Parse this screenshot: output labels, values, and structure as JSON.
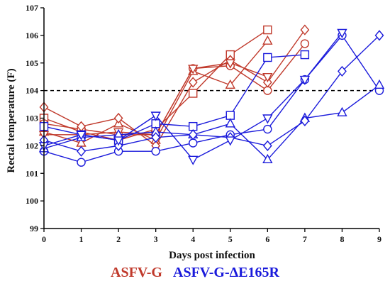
{
  "chart_data": {
    "type": "line",
    "xlabel": "Days post infection",
    "ylabel": "Rectal temperature (F)",
    "x_ticks": [
      0,
      1,
      2,
      3,
      4,
      5,
      6,
      7,
      8,
      9
    ],
    "y_ticks": [
      99,
      100,
      101,
      102,
      103,
      104,
      105,
      106,
      107
    ],
    "xlim": [
      0,
      9
    ],
    "ylim": [
      99,
      107
    ],
    "grid": false,
    "threshold": {
      "y": 104,
      "style": "dashed",
      "color": "#000000"
    },
    "legend": [
      {
        "name": "ASFV-G",
        "color": "#c0392b"
      },
      {
        "name": "ASFV-G-ΔE165R",
        "color": "#1a1adb"
      }
    ],
    "groups": [
      {
        "name": "ASFV-G",
        "color": "#c0392b",
        "series": [
          {
            "marker": "square",
            "x": [
              0,
              1,
              2,
              3,
              4,
              5,
              6
            ],
            "y": [
              103.0,
              102.5,
              102.2,
              102.6,
              103.9,
              105.3,
              106.2
            ]
          },
          {
            "marker": "circle",
            "x": [
              0,
              1,
              2,
              3,
              4,
              5,
              6,
              7
            ],
            "y": [
              102.8,
              102.6,
              102.4,
              102.4,
              104.8,
              104.9,
              104.0,
              105.7
            ]
          },
          {
            "marker": "triangle",
            "x": [
              0,
              1,
              2,
              3,
              4,
              5,
              6
            ],
            "y": [
              102.5,
              102.1,
              102.8,
              102.2,
              104.7,
              104.2,
              105.8
            ]
          },
          {
            "marker": "diamond",
            "x": [
              0,
              1,
              2,
              3,
              4,
              5,
              6,
              7
            ],
            "y": [
              103.4,
              102.7,
              103.0,
              102.0,
              104.3,
              105.1,
              104.3,
              106.2
            ]
          },
          {
            "marker": "invtriangle",
            "x": [
              0,
              1,
              2,
              3,
              4,
              5,
              6
            ],
            "y": [
              102.4,
              102.4,
              102.5,
              102.4,
              104.8,
              105.0,
              104.5
            ]
          }
        ]
      },
      {
        "name": "ASFV-G-ΔE165R",
        "color": "#1a1adb",
        "series": [
          {
            "marker": "square",
            "x": [
              0,
              1,
              2,
              3,
              4,
              5,
              6,
              7
            ],
            "y": [
              102.7,
              102.4,
              102.2,
              102.8,
              102.7,
              103.1,
              105.2,
              105.3
            ]
          },
          {
            "marker": "circle",
            "x": [
              0,
              1,
              2,
              3,
              4,
              5,
              6,
              7,
              8,
              9
            ],
            "y": [
              101.8,
              101.4,
              101.8,
              101.8,
              102.1,
              102.4,
              102.6,
              104.4,
              106.0,
              104.0
            ]
          },
          {
            "marker": "triangle",
            "x": [
              0,
              1,
              2,
              3,
              4,
              5,
              6,
              7,
              8,
              9
            ],
            "y": [
              101.9,
              102.3,
              102.4,
              102.5,
              102.4,
              102.8,
              101.5,
              103.0,
              103.2,
              104.2
            ]
          },
          {
            "marker": "diamond",
            "x": [
              0,
              1,
              2,
              3,
              4,
              5,
              6,
              7,
              8,
              9
            ],
            "y": [
              102.2,
              101.8,
              102.0,
              102.3,
              102.4,
              102.3,
              102.0,
              102.9,
              104.7,
              106.0
            ]
          },
          {
            "marker": "invtriangle",
            "x": [
              0,
              1,
              2,
              3,
              4,
              5,
              6,
              7,
              8
            ],
            "y": [
              102.0,
              102.4,
              102.2,
              103.1,
              101.5,
              102.2,
              103.0,
              104.4,
              106.1
            ]
          }
        ]
      }
    ]
  }
}
